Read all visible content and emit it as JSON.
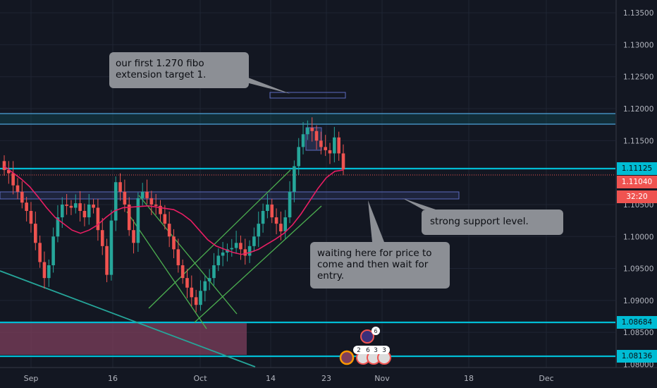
{
  "chart_data": {
    "type": "candlestick",
    "x_ticks": [
      "Sep",
      "16",
      "Oct",
      "14",
      "23",
      "Nov",
      "18",
      "Dec"
    ],
    "y_ticks": [
      "1.13500",
      "1.13000",
      "1.12500",
      "1.12000",
      "1.11500",
      "1.10500",
      "1.10000",
      "1.09500",
      "1.09000",
      "1.08500"
    ],
    "ylim": [
      1.0795,
      1.137
    ],
    "price_tags": [
      {
        "label": "1.11125",
        "value": 1.11125,
        "color": "#00bcd4"
      },
      {
        "label": "1.11040",
        "value": 1.1104,
        "color": "#ef5350"
      },
      {
        "label": "32:20",
        "value": 1.1082,
        "color": "#ef5350"
      },
      {
        "label": "1.08684",
        "value": 1.08684,
        "color": "#00bcd4"
      },
      {
        "label": "1.08136",
        "value": 1.08136,
        "color": "#00bcd4"
      }
    ],
    "partial_tick_bottom": "1.08000",
    "support_resistance_levels": [
      1.12,
      1.1183,
      1.11125,
      1.08684,
      1.08136
    ],
    "last_price": 1.1104,
    "candles_approx_close": [
      1.1104,
      1.1099,
      1.108,
      1.107,
      1.1053,
      1.104,
      1.102,
      1.099,
      1.096,
      1.0935,
      1.0955,
      1.1,
      1.103,
      1.105,
      1.1048,
      1.1045,
      1.1052,
      1.104,
      1.103,
      1.105,
      1.1045,
      1.101,
      1.0985,
      1.094,
      1.1025,
      1.1085,
      1.107,
      1.105,
      1.101,
      1.099,
      1.106,
      1.107,
      1.106,
      1.105,
      1.1048,
      1.1035,
      1.102,
      1.1,
      1.098,
      1.0955,
      1.0935,
      1.092,
      1.0905,
      1.0893,
      1.0915,
      1.093,
      1.0935,
      1.0955,
      1.097,
      1.0975,
      1.098,
      1.0982,
      1.099,
      1.098,
      1.097,
      1.0985,
      1.1,
      1.102,
      1.104,
      1.105,
      1.103,
      1.102,
      1.1008,
      1.103,
      1.107,
      1.111,
      1.114,
      1.116,
      1.117,
      1.1165,
      1.115,
      1.114,
      1.1135,
      1.113,
      1.1155,
      1.113,
      1.1105
    ],
    "moving_average_approx": [
      1.111,
      1.11,
      1.109,
      1.1078,
      1.1062,
      1.1045,
      1.103,
      1.102,
      1.101,
      1.1005,
      1.101,
      1.1018,
      1.103,
      1.104,
      1.1045,
      1.1046,
      1.1047,
      1.1048,
      1.1046,
      1.1044,
      1.1042,
      1.1035,
      1.1025,
      1.101,
      1.0995,
      1.0985,
      1.098,
      1.0975,
      1.0972,
      1.0975,
      1.098,
      1.0988,
      1.0996,
      1.1005,
      1.1018,
      1.1035,
      1.1055,
      1.1075,
      1.1092,
      1.1102,
      1.1104
    ]
  },
  "annotations": {
    "fibo_note": "our first 1.270 fibo\nextension target 1.",
    "support_note": "strong support level.",
    "waiting_note": "waiting here for price to\ncome and then  wait for\nentry."
  },
  "event_badges": {
    "top_count": "6",
    "row_digits": [
      "2",
      "6",
      "3",
      "3"
    ]
  },
  "colors": {
    "background": "#131722",
    "cyan_level": "#00bcd4",
    "bull_candle": "#26a69a",
    "bear_candle": "#ef5350",
    "moving_average": "#e91e63",
    "trendline_green": "#4caf50",
    "zone_blue": "#5c6bc0",
    "demand_zone": "#7e3f5c"
  }
}
